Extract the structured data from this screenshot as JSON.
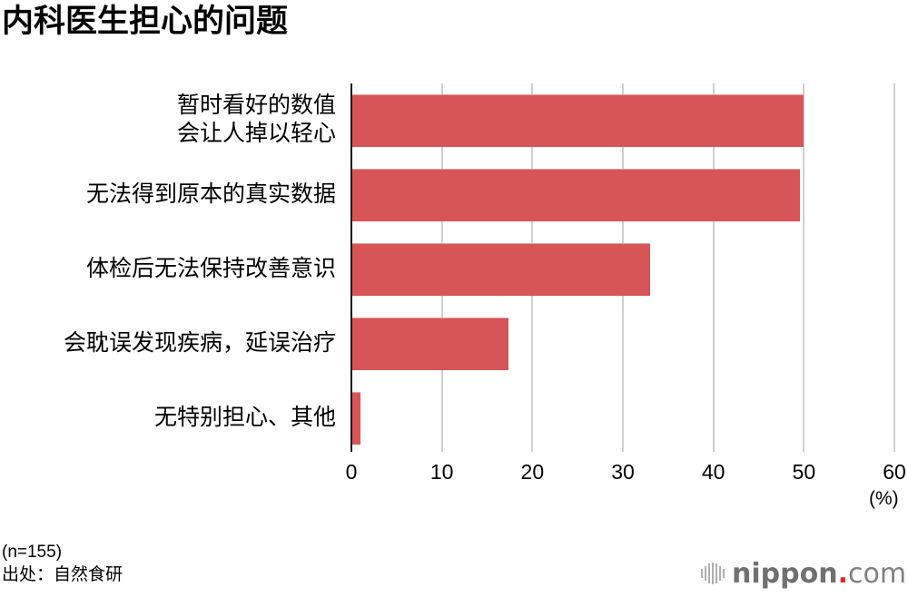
{
  "title": "内科医生担心的问题",
  "chart_data": {
    "type": "bar",
    "orientation": "horizontal",
    "title": "内科医生担心的问题",
    "categories": [
      "暂时看好的数值\n会让人掉以轻心",
      "无法得到原本的真实数据",
      "体检后无法保持改善意识",
      "会耽误发现疾病，延误治疗",
      "无特别担心、其他"
    ],
    "values": [
      50.0,
      49.6,
      33.0,
      17.4,
      1.0
    ],
    "xlabel": "(%)",
    "ylabel": "",
    "xlim": [
      0,
      60
    ],
    "xticks": [
      0,
      10,
      20,
      30,
      40,
      50,
      60
    ],
    "grid": true,
    "legend": null,
    "bar_color": "#d85557",
    "notes": [
      "(n=155)",
      "出处：自然食研"
    ]
  },
  "axis": {
    "ticks": [
      "0",
      "10",
      "20",
      "30",
      "40",
      "50",
      "60"
    ],
    "unit": "(%)"
  },
  "footer": {
    "sample": "(n=155)",
    "source": "出处：自然食研"
  },
  "logo": {
    "brand": "nippon",
    "dot": ".",
    "suffix": "com"
  }
}
